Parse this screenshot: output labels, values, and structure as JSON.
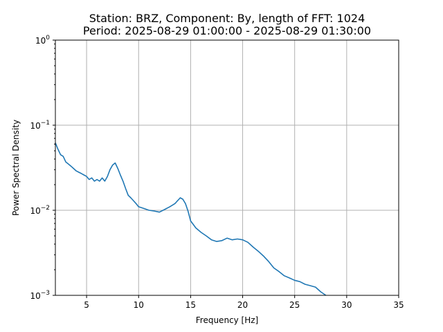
{
  "chart_data": {
    "type": "line",
    "title_line1": "Station: BRZ, Component: By, length of FFT: 1024",
    "title_line2": "Period: 2025-08-29 01:00:00 - 2025-08-29 01:30:00",
    "xlabel": "Frequency [Hz]",
    "ylabel": "Power Spectral Density",
    "xlim": [
      2,
      35
    ],
    "ylim": [
      0.001,
      1
    ],
    "yscale": "log",
    "grid": true,
    "x_ticks": [
      5,
      10,
      15,
      20,
      25,
      30,
      35
    ],
    "x_tick_labels": [
      "5",
      "10",
      "15",
      "20",
      "25",
      "30",
      "35"
    ],
    "y_ticks": [
      0.001,
      0.01,
      0.1,
      1
    ],
    "y_tick_labels": [
      {
        "base": "10",
        "exp": "−3"
      },
      {
        "base": "10",
        "exp": "−2"
      },
      {
        "base": "10",
        "exp": "−1"
      },
      {
        "base": "10",
        "exp": "0"
      }
    ],
    "colors": {
      "series": "#1f77b4"
    },
    "series": [
      {
        "x": [
          2.0,
          2.25,
          2.5,
          2.75,
          3.0,
          3.25,
          3.5,
          3.75,
          4.0,
          4.25,
          4.5,
          4.75,
          5.0,
          5.25,
          5.5,
          5.75,
          6.0,
          6.25,
          6.5,
          6.75,
          7.0,
          7.25,
          7.5,
          7.75,
          8.0,
          8.25,
          8.5,
          8.75,
          9.0,
          9.25,
          9.5,
          9.75,
          10.0,
          10.5,
          11.0,
          11.5,
          12.0,
          12.5,
          13.0,
          13.5,
          14.0,
          14.25,
          14.5,
          14.75,
          15.0,
          15.5,
          16.0,
          16.5,
          17.0,
          17.5,
          18.0,
          18.5,
          19.0,
          19.5,
          20.0,
          20.5,
          21.0,
          21.5,
          22.0,
          22.5,
          23.0,
          23.5,
          24.0,
          24.5,
          25.0,
          25.5,
          26.0,
          26.5,
          27.0,
          27.5,
          28.0
        ],
        "y": [
          0.062,
          0.052,
          0.045,
          0.043,
          0.037,
          0.035,
          0.033,
          0.031,
          0.029,
          0.028,
          0.027,
          0.026,
          0.025,
          0.023,
          0.024,
          0.022,
          0.023,
          0.022,
          0.024,
          0.022,
          0.025,
          0.03,
          0.034,
          0.036,
          0.031,
          0.026,
          0.022,
          0.018,
          0.015,
          0.014,
          0.013,
          0.012,
          0.011,
          0.0105,
          0.01,
          0.0098,
          0.0095,
          0.0102,
          0.011,
          0.012,
          0.014,
          0.0135,
          0.012,
          0.0098,
          0.0075,
          0.0062,
          0.0055,
          0.005,
          0.0045,
          0.0043,
          0.0044,
          0.0047,
          0.0045,
          0.0046,
          0.0045,
          0.0042,
          0.0037,
          0.0033,
          0.0029,
          0.0025,
          0.0021,
          0.0019,
          0.0017,
          0.0016,
          0.0015,
          0.00145,
          0.00135,
          0.0013,
          0.00125,
          0.0011,
          0.001
        ]
      }
    ]
  }
}
